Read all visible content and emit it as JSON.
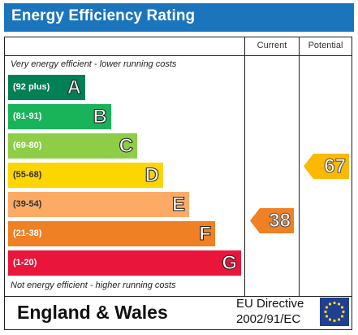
{
  "title": "Energy Efficiency Rating",
  "columns": {
    "current": "Current",
    "potential": "Potential"
  },
  "top_note": "Very energy efficient - lower running costs",
  "bottom_note": "Not energy efficient - higher running costs",
  "bands": [
    {
      "range": "(92 plus)",
      "letter": "A",
      "color": "#008054"
    },
    {
      "range": "(81-91)",
      "letter": "B",
      "color": "#19b459"
    },
    {
      "range": "(69-80)",
      "letter": "C",
      "color": "#8dce46"
    },
    {
      "range": "(55-68)",
      "letter": "D",
      "color": "#ffd500"
    },
    {
      "range": "(39-54)",
      "letter": "E",
      "color": "#fcaa65"
    },
    {
      "range": "(21-38)",
      "letter": "F",
      "color": "#ef8023"
    },
    {
      "range": "(1-20)",
      "letter": "G",
      "color": "#e9153b"
    }
  ],
  "current_rating": {
    "value": "38",
    "color": "#ef8023"
  },
  "potential_rating": {
    "value": "67",
    "color": "#fcb900"
  },
  "footer": {
    "country": "England & Wales",
    "directive_line1": "EU Directive",
    "directive_line2": "2002/91/EC"
  },
  "flag": {
    "background": "#1f3f93",
    "star_color": "#ffdd00",
    "icon": "eu-flag-icon"
  }
}
